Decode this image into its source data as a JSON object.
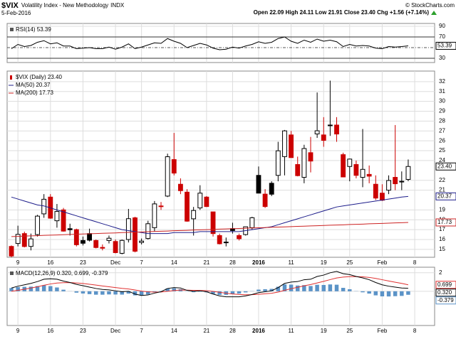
{
  "header": {
    "symbol": "$VIX",
    "name": "Volatility Index - New Methodology",
    "exchange": "INDX",
    "date": "5-Feb-2016",
    "quote": "Open 22.09  High 24.11  Low 21.91  Close 23.40  Chg +1.56 (+7.14%)",
    "credit": "© StockCharts.com"
  },
  "chart_data": [
    {
      "type": "line",
      "title": "RSI(14) 53.39",
      "xlim": [
        -0.66,
        65.06
      ],
      "ylim": [
        22,
        95.3
      ],
      "xticks": [
        1,
        6,
        11,
        16,
        20,
        25,
        30,
        34,
        38,
        43,
        48,
        52,
        57,
        62
      ],
      "yticks": [
        30,
        70,
        90
      ],
      "reference_lines": [
        70,
        30
      ],
      "midline": 50,
      "grid": true,
      "series": [
        {
          "color": "#000000",
          "marker": "53.39",
          "values": [
            48,
            56,
            52,
            54,
            60,
            63,
            57,
            59,
            53,
            53,
            48,
            49,
            50,
            48,
            48,
            51,
            47,
            51,
            57,
            48,
            51,
            55,
            59,
            58,
            67,
            62,
            58,
            50,
            54,
            58,
            55,
            49,
            46,
            47,
            51,
            49,
            53,
            56,
            61,
            58,
            60,
            67,
            70,
            62,
            58,
            64,
            60,
            66,
            62,
            64,
            61,
            52,
            56,
            53,
            54,
            53,
            49,
            48,
            52,
            51,
            52,
            53.39
          ]
        }
      ]
    },
    {
      "type": "candlestick",
      "xlim": [
        -0.66,
        65.06
      ],
      "ylim": [
        14.2,
        33.07
      ],
      "grid": true,
      "xticks": [
        {
          "value": 1,
          "label": "9"
        },
        {
          "value": 6,
          "label": "16"
        },
        {
          "value": 11,
          "label": "23"
        },
        {
          "value": 16,
          "label": "Dec"
        },
        {
          "value": 20,
          "label": "7"
        },
        {
          "value": 25,
          "label": "14"
        },
        {
          "value": 30,
          "label": "21"
        },
        {
          "value": 34,
          "label": "28"
        },
        {
          "value": 38,
          "label": "2016"
        },
        {
          "value": 43,
          "label": "11"
        },
        {
          "value": 48,
          "label": "19"
        },
        {
          "value": 52,
          "label": "25"
        },
        {
          "value": 57,
          "label": "Feb"
        },
        {
          "value": 62,
          "label": "8"
        }
      ],
      "yticks": [
        15,
        16,
        17,
        18,
        19,
        21,
        22,
        24,
        25,
        26,
        27,
        28,
        29,
        30,
        31,
        32
      ],
      "series": [
        {
          "name": "$VIX (Daily) 23.40",
          "type": "candlestick",
          "color": "#000000",
          "up_color": "#000000",
          "down_color": "#cc0000",
          "marker": "23.40",
          "open": [
            15.3,
            15.6,
            16.6,
            15.3,
            16.5,
            18.6,
            20.3,
            17.9,
            19.0,
            17.1,
            17.0,
            15.9,
            16.6,
            15.9,
            15.2,
            15.9,
            15.8,
            14.6,
            16.0,
            18.2,
            15.7,
            16.1,
            17.2,
            19.4,
            20.4,
            24.1,
            21.6,
            20.8,
            18.1,
            19.2,
            20.3,
            18.8,
            16.4,
            15.7,
            17.1,
            16.4,
            16.5,
            17.2,
            22.5,
            20.6,
            21.7,
            22.5,
            24.4,
            26.6,
            23.6,
            22.3,
            24.8,
            26.7,
            26.6,
            27.6,
            27.6,
            24.6,
            23.4,
            23.6,
            22.3,
            22.6,
            21.6,
            20.7,
            21.0,
            22.3,
            21.9,
            22.09
          ],
          "high": [
            15.4,
            17.4,
            16.8,
            16.6,
            18.5,
            20.6,
            20.6,
            19.6,
            19.2,
            17.6,
            17.1,
            16.3,
            17.1,
            16.0,
            15.5,
            16.4,
            16.0,
            16.0,
            19.1,
            18.3,
            16.1,
            17.9,
            19.9,
            19.8,
            24.7,
            26.8,
            22.2,
            21.1,
            19.3,
            21.5,
            20.4,
            18.8,
            16.6,
            16.2,
            17.7,
            16.6,
            17.3,
            18.3,
            23.4,
            21.1,
            21.9,
            25.9,
            27.1,
            27.0,
            24.4,
            25.6,
            26.4,
            30.9,
            28.4,
            32.1,
            28.4,
            24.8,
            24.2,
            24.0,
            27.2,
            23.5,
            22.5,
            21.6,
            22.5,
            27.6,
            22.9,
            24.11
          ],
          "low": [
            14.2,
            15.3,
            15.2,
            14.9,
            16.3,
            18.2,
            18.1,
            17.2,
            16.8,
            16.4,
            15.3,
            15.4,
            15.8,
            15.1,
            14.9,
            15.6,
            14.6,
            14.5,
            15.7,
            14.7,
            15.5,
            16.0,
            16.8,
            19.0,
            20.3,
            22.5,
            20.6,
            17.8,
            16.4,
            19.0,
            19.3,
            16.3,
            15.5,
            15.3,
            16.6,
            15.9,
            16.4,
            17.0,
            20.7,
            19.2,
            20.4,
            21.9,
            22.5,
            24.3,
            22.4,
            21.7,
            22.8,
            26.3,
            25.4,
            26.5,
            25.9,
            22.3,
            21.9,
            22.2,
            21.3,
            21.7,
            20.0,
            19.9,
            20.6,
            21.0,
            21.0,
            21.91
          ],
          "close": [
            14.33,
            16.52,
            15.29,
            16.06,
            18.37,
            20.08,
            18.16,
            18.84,
            16.85,
            16.99,
            15.47,
            15.62,
            15.93,
            15.19,
            15.12,
            16.13,
            14.67,
            15.91,
            18.11,
            14.81,
            15.84,
            17.6,
            19.61,
            19.34,
            24.39,
            22.73,
            20.95,
            17.86,
            18.94,
            20.7,
            19.34,
            16.6,
            15.57,
            15.74,
            16.91,
            16.08,
            17.29,
            18.21,
            20.7,
            19.34,
            20.59,
            24.99,
            27.01,
            24.3,
            22.47,
            25.22,
            23.95,
            27.02,
            26.05,
            27.59,
            26.69,
            22.34,
            24.15,
            22.5,
            23.11,
            22.42,
            20.2,
            19.98,
            21.98,
            21.65,
            21.84,
            23.4
          ]
        },
        {
          "name": "MA(50) 20.37",
          "type": "line",
          "color": "#1c1c8a",
          "marker": "20.37",
          "values": [
            20.3,
            20.1,
            19.9,
            19.7,
            19.5,
            19.4,
            19.2,
            19.0,
            18.8,
            18.6,
            18.4,
            18.2,
            18.0,
            17.8,
            17.6,
            17.4,
            17.2,
            17.0,
            16.9,
            16.8,
            16.7,
            16.6,
            16.6,
            16.6,
            16.6,
            16.7,
            16.7,
            16.7,
            16.7,
            16.8,
            16.8,
            16.8,
            16.8,
            16.8,
            16.8,
            16.8,
            16.9,
            17.0,
            17.1,
            17.2,
            17.3,
            17.5,
            17.7,
            17.9,
            18.1,
            18.3,
            18.5,
            18.7,
            18.9,
            19.1,
            19.3,
            19.4,
            19.5,
            19.6,
            19.7,
            19.8,
            19.9,
            20.0,
            20.1,
            20.2,
            20.3,
            20.37
          ]
        },
        {
          "name": "MA(200) 17.73",
          "type": "line",
          "color": "#cc2222",
          "marker": "17.73",
          "values": [
            16.3,
            16.32,
            16.35,
            16.37,
            16.39,
            16.42,
            16.44,
            16.46,
            16.49,
            16.51,
            16.53,
            16.56,
            16.58,
            16.6,
            16.63,
            16.65,
            16.67,
            16.7,
            16.72,
            16.75,
            16.77,
            16.79,
            16.82,
            16.84,
            16.86,
            16.89,
            16.91,
            16.93,
            16.96,
            16.98,
            17.0,
            17.03,
            17.05,
            17.07,
            17.1,
            17.12,
            17.14,
            17.17,
            17.19,
            17.21,
            17.24,
            17.26,
            17.28,
            17.31,
            17.33,
            17.35,
            17.38,
            17.4,
            17.42,
            17.45,
            17.47,
            17.49,
            17.52,
            17.54,
            17.56,
            17.59,
            17.61,
            17.63,
            17.66,
            17.68,
            17.7,
            17.73
          ]
        }
      ]
    },
    {
      "type": "line",
      "title": "MACD(12,26,9) 0.320, 0.699, -0.379",
      "xlim": [
        -0.66,
        65.06
      ],
      "ylim": [
        -3.7,
        2.6
      ],
      "grid": true,
      "xticks": [
        {
          "value": 1,
          "label": "9"
        },
        {
          "value": 6,
          "label": "16"
        },
        {
          "value": 11,
          "label": "23"
        },
        {
          "value": 16,
          "label": "Dec"
        },
        {
          "value": 20,
          "label": "7"
        },
        {
          "value": 25,
          "label": "14"
        },
        {
          "value": 30,
          "label": "21"
        },
        {
          "value": 34,
          "label": "28"
        },
        {
          "value": 38,
          "label": "2016"
        },
        {
          "value": 43,
          "label": "11"
        },
        {
          "value": 48,
          "label": "19"
        },
        {
          "value": 52,
          "label": "25"
        },
        {
          "value": 57,
          "label": "Feb"
        },
        {
          "value": 62,
          "label": "8"
        }
      ],
      "yticks": [
        0,
        2
      ],
      "series": [
        {
          "type": "bar",
          "color": "#5b93c7",
          "marker": "-0.379",
          "values": [
            0.35,
            0.45,
            0.48,
            0.5,
            0.56,
            0.65,
            0.56,
            0.41,
            0.17,
            0.01,
            -0.15,
            -0.24,
            -0.31,
            -0.37,
            -0.37,
            -0.34,
            -0.35,
            -0.36,
            -0.25,
            -0.44,
            -0.47,
            -0.34,
            -0.11,
            0.03,
            0.3,
            0.32,
            0.22,
            -0.02,
            -0.1,
            -0.04,
            -0.11,
            -0.29,
            -0.39,
            -0.39,
            -0.31,
            -0.25,
            -0.12,
            0.02,
            0.18,
            0.22,
            0.26,
            0.49,
            0.75,
            0.72,
            0.62,
            0.66,
            0.57,
            0.7,
            0.68,
            0.74,
            0.71,
            0.37,
            0.22,
            0.02,
            -0.11,
            -0.25,
            -0.44,
            -0.55,
            -0.56,
            -0.53,
            -0.5,
            -0.379
          ]
        },
        {
          "type": "line",
          "color": "#e03030",
          "marker": "0.699",
          "values": [
            0.0,
            0.1,
            0.22,
            0.35,
            0.49,
            0.65,
            0.79,
            0.89,
            0.93,
            0.94,
            0.9,
            0.84,
            0.76,
            0.67,
            0.57,
            0.49,
            0.4,
            0.31,
            0.25,
            0.14,
            0.02,
            -0.06,
            -0.09,
            -0.08,
            0.0,
            0.08,
            0.13,
            0.12,
            0.1,
            0.09,
            0.06,
            -0.01,
            -0.11,
            -0.21,
            -0.29,
            -0.35,
            -0.38,
            -0.37,
            -0.33,
            -0.27,
            -0.21,
            -0.09,
            0.1,
            0.28,
            0.43,
            0.59,
            0.73,
            0.9,
            1.07,
            1.26,
            1.44,
            1.53,
            1.58,
            1.58,
            1.56,
            1.5,
            1.39,
            1.25,
            1.11,
            0.98,
            0.85,
            0.699
          ]
        },
        {
          "type": "line",
          "color": "#000000",
          "marker": "0.320",
          "values": [
            0.35,
            0.55,
            0.7,
            0.85,
            1.05,
            1.3,
            1.35,
            1.3,
            1.1,
            0.95,
            0.75,
            0.6,
            0.45,
            0.3,
            0.2,
            0.15,
            0.05,
            -0.05,
            0.0,
            -0.3,
            -0.45,
            -0.4,
            -0.2,
            -0.05,
            0.3,
            0.4,
            0.35,
            0.1,
            0.0,
            0.05,
            -0.05,
            -0.3,
            -0.5,
            -0.6,
            -0.6,
            -0.6,
            -0.5,
            -0.35,
            -0.15,
            -0.05,
            0.05,
            0.4,
            0.85,
            1.0,
            1.05,
            1.25,
            1.3,
            1.6,
            1.75,
            2.0,
            2.15,
            1.9,
            1.8,
            1.6,
            1.45,
            1.25,
            0.95,
            0.7,
            0.55,
            0.45,
            0.35,
            0.32
          ]
        }
      ]
    }
  ]
}
